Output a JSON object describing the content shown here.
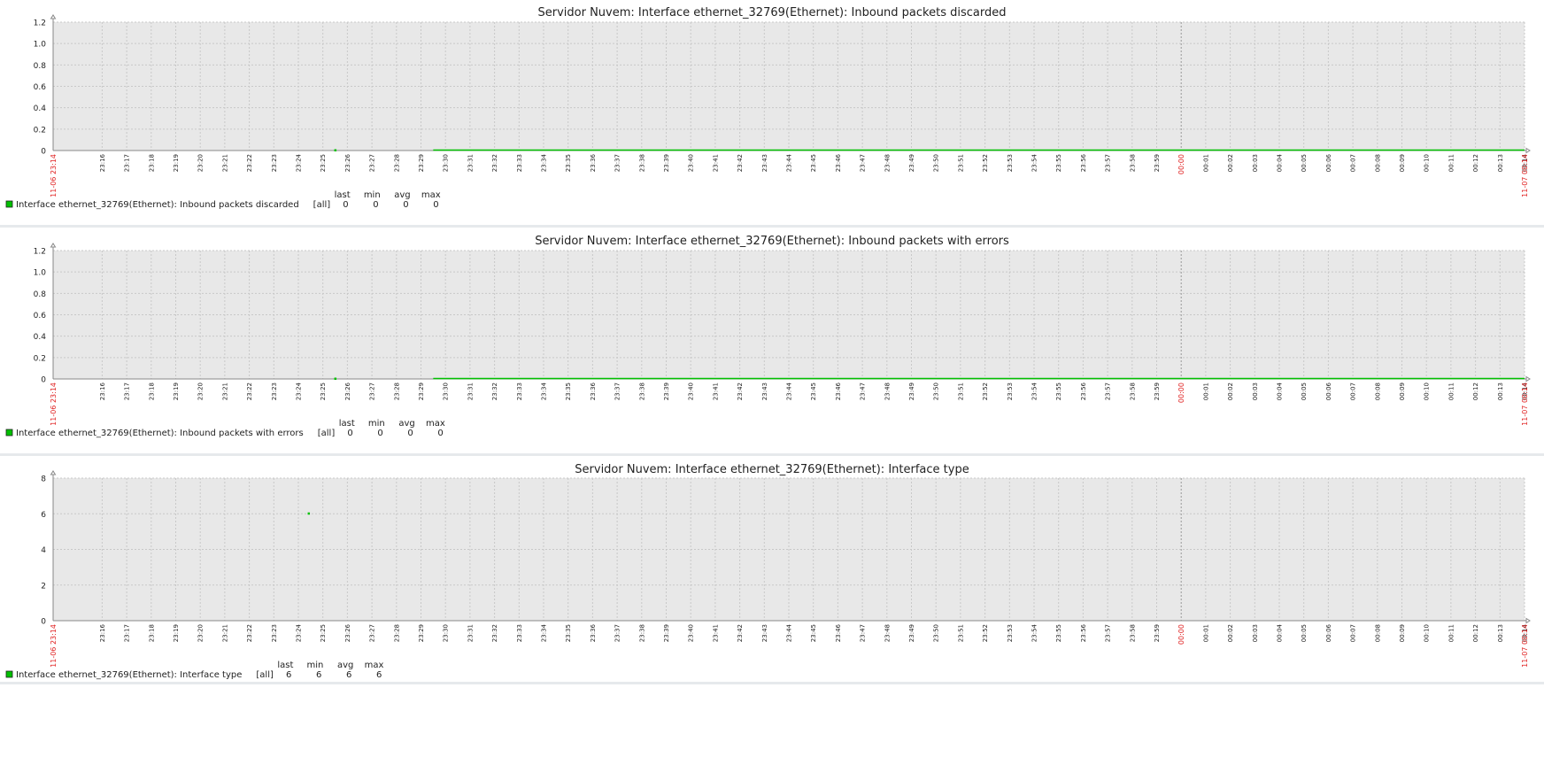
{
  "chart_data": [
    {
      "type": "line",
      "title": "Servidor Nuvem: Interface ethernet_32769(Ethernet): Inbound packets discarded",
      "xlabel": "",
      "ylabel": "",
      "ylim": [
        0,
        1.2
      ],
      "y_ticks": [
        "0",
        "0.2",
        "0.4",
        "0.6",
        "0.8",
        "1.0",
        "1.2"
      ],
      "x_start_label": "11-06 23:14",
      "x_end_label": "11-07 00:14",
      "x_midnight_label": "00:00",
      "x_tick_labels": [
        "23:16",
        "23:17",
        "23:18",
        "23:19",
        "23:20",
        "23:21",
        "23:22",
        "23:23",
        "23:24",
        "23:25",
        "23:26",
        "23:27",
        "23:28",
        "23:29",
        "23:30",
        "23:31",
        "23:32",
        "23:33",
        "23:34",
        "23:35",
        "23:36",
        "23:37",
        "23:38",
        "23:39",
        "23:40",
        "23:41",
        "23:42",
        "23:43",
        "23:44",
        "23:45",
        "23:46",
        "23:47",
        "23:48",
        "23:49",
        "23:50",
        "23:51",
        "23:52",
        "23:53",
        "23:54",
        "23:55",
        "23:56",
        "23:57",
        "23:58",
        "23:59",
        "00:01",
        "00:02",
        "00:03",
        "00:04",
        "00:05",
        "00:06",
        "00:07",
        "00:08",
        "00:09",
        "00:10",
        "00:11",
        "00:12",
        "00:13",
        "00:14"
      ],
      "grid": true,
      "series": [
        {
          "name": "Interface ethernet_32769(Ethernet): Inbound packets discarded",
          "color": "#00c000",
          "points": [
            {
              "x": "23:25:30",
              "y": 0
            }
          ],
          "segments": [
            {
              "x_from": "23:29:30",
              "x_to": "00:14",
              "y": 0
            }
          ]
        }
      ],
      "legend": {
        "headers": [
          "last",
          "min",
          "avg",
          "max"
        ],
        "func": "[all]",
        "values": [
          "0",
          "0",
          "0",
          "0"
        ]
      }
    },
    {
      "type": "line",
      "title": "Servidor Nuvem: Interface ethernet_32769(Ethernet): Inbound packets with errors",
      "xlabel": "",
      "ylabel": "",
      "ylim": [
        0,
        1.2
      ],
      "y_ticks": [
        "0",
        "0.2",
        "0.4",
        "0.6",
        "0.8",
        "1.0",
        "1.2"
      ],
      "x_start_label": "11-06 23:14",
      "x_end_label": "11-07 00:14",
      "x_midnight_label": "00:00",
      "x_tick_labels": [
        "23:16",
        "23:17",
        "23:18",
        "23:19",
        "23:20",
        "23:21",
        "23:22",
        "23:23",
        "23:24",
        "23:25",
        "23:26",
        "23:27",
        "23:28",
        "23:29",
        "23:30",
        "23:31",
        "23:32",
        "23:33",
        "23:34",
        "23:35",
        "23:36",
        "23:37",
        "23:38",
        "23:39",
        "23:40",
        "23:41",
        "23:42",
        "23:43",
        "23:44",
        "23:45",
        "23:46",
        "23:47",
        "23:48",
        "23:49",
        "23:50",
        "23:51",
        "23:52",
        "23:53",
        "23:54",
        "23:55",
        "23:56",
        "23:57",
        "23:58",
        "23:59",
        "00:01",
        "00:02",
        "00:03",
        "00:04",
        "00:05",
        "00:06",
        "00:07",
        "00:08",
        "00:09",
        "00:10",
        "00:11",
        "00:12",
        "00:13",
        "00:14"
      ],
      "grid": true,
      "series": [
        {
          "name": "Interface ethernet_32769(Ethernet): Inbound packets with errors",
          "color": "#00c000",
          "points": [
            {
              "x": "23:25:30",
              "y": 0
            }
          ],
          "segments": [
            {
              "x_from": "23:29:30",
              "x_to": "00:14",
              "y": 0
            }
          ]
        }
      ],
      "legend": {
        "headers": [
          "last",
          "min",
          "avg",
          "max"
        ],
        "func": "[all]",
        "values": [
          "0",
          "0",
          "0",
          "0"
        ]
      }
    },
    {
      "type": "scatter",
      "title": "Servidor Nuvem: Interface ethernet_32769(Ethernet): Interface type",
      "xlabel": "",
      "ylabel": "",
      "ylim": [
        0,
        8
      ],
      "y_ticks": [
        "0",
        "2",
        "4",
        "6",
        "8"
      ],
      "x_start_label": "11-06 23:14",
      "x_end_label": "11-07 00:14",
      "x_midnight_label": "00:00",
      "x_tick_labels": [
        "23:16",
        "23:17",
        "23:18",
        "23:19",
        "23:20",
        "23:21",
        "23:22",
        "23:23",
        "23:24",
        "23:25",
        "23:26",
        "23:27",
        "23:28",
        "23:29",
        "23:30",
        "23:31",
        "23:32",
        "23:33",
        "23:34",
        "23:35",
        "23:36",
        "23:37",
        "23:38",
        "23:39",
        "23:40",
        "23:41",
        "23:42",
        "23:43",
        "23:44",
        "23:45",
        "23:46",
        "23:47",
        "23:48",
        "23:49",
        "23:50",
        "23:51",
        "23:52",
        "23:53",
        "23:54",
        "23:55",
        "23:56",
        "23:57",
        "23:58",
        "23:59",
        "00:01",
        "00:02",
        "00:03",
        "00:04",
        "00:05",
        "00:06",
        "00:07",
        "00:08",
        "00:09",
        "00:10",
        "00:11",
        "00:12",
        "00:13",
        "00:14"
      ],
      "grid": true,
      "series": [
        {
          "name": "Interface ethernet_32769(Ethernet): Interface type",
          "color": "#00c000",
          "points": [
            {
              "x": "23:24:25",
              "y": 6
            }
          ],
          "segments": []
        }
      ],
      "legend": {
        "headers": [
          "last",
          "min",
          "avg",
          "max"
        ],
        "func": "[all]",
        "values": [
          "6",
          "6",
          "6",
          "6"
        ]
      }
    }
  ]
}
